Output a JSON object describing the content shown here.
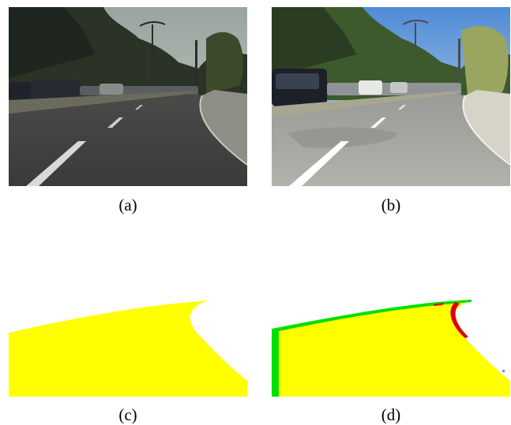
{
  "figure": {
    "captions": {
      "a": "(a)",
      "b": "(b)",
      "c": "(c)",
      "d": "(d)"
    },
    "colors": {
      "road_mask": "#ffff00",
      "true_positive": "#ffff00",
      "false_negative": "#00e000",
      "false_positive": "#e00000",
      "background": "#ffffff"
    }
  }
}
